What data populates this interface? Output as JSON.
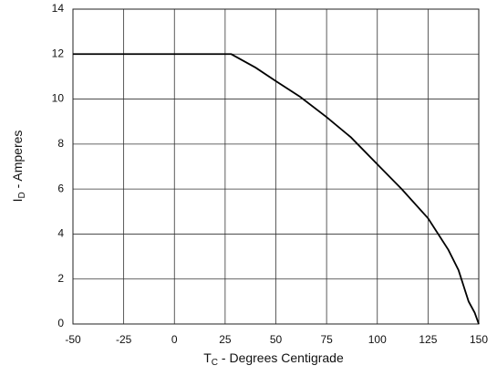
{
  "chart_data": {
    "type": "line",
    "xlabel": {
      "symbol": "T",
      "subscript": "C",
      "text": " - Degrees Centigrade"
    },
    "ylabel": {
      "symbol": "I",
      "subscript": "D",
      "text": " - Amperes"
    },
    "x": [
      -50,
      28,
      40,
      50,
      62,
      75,
      87,
      100,
      112,
      125,
      135,
      140,
      145,
      148,
      150
    ],
    "series": [
      {
        "color": "#000000",
        "values": [
          12,
          12,
          11.4,
          10.8,
          10.1,
          9.2,
          8.3,
          7.1,
          6.0,
          4.7,
          3.3,
          2.4,
          1.0,
          0.5,
          0
        ]
      }
    ],
    "xlim": [
      -50,
      150
    ],
    "xticks": [
      -50,
      -25,
      0,
      25,
      50,
      75,
      100,
      125,
      150
    ],
    "ylim": [
      0,
      14
    ],
    "yticks": [
      0,
      2,
      4,
      6,
      8,
      10,
      12,
      14
    ],
    "grid": true
  }
}
